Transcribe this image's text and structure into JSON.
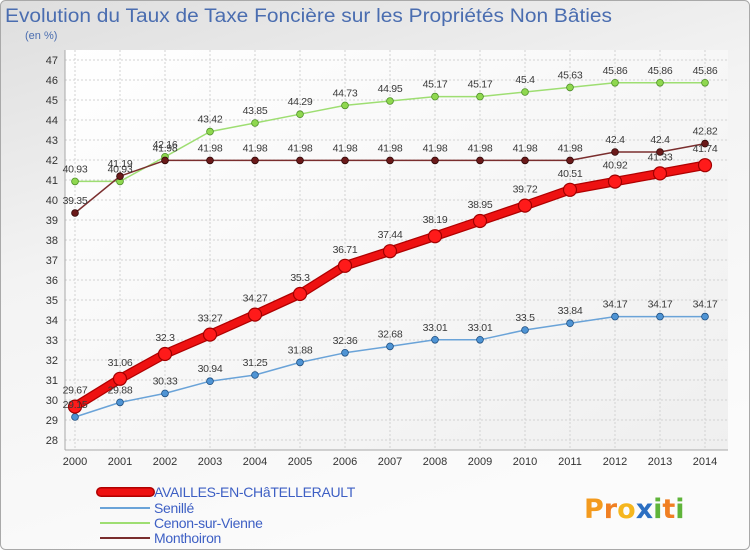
{
  "chart_data": {
    "type": "line",
    "title": "Evolution du Taux de Taxe Foncière sur les Propriétés Non Bâties",
    "subtitle": "(en %)",
    "xlabel": "",
    "ylabel": "",
    "categories": [
      "2000",
      "2001",
      "2002",
      "2003",
      "2004",
      "2005",
      "2006",
      "2007",
      "2008",
      "2009",
      "2010",
      "2011",
      "2012",
      "2013",
      "2014"
    ],
    "ylim": [
      28,
      47
    ],
    "yticks": [
      28,
      29,
      30,
      31,
      32,
      33,
      34,
      35,
      36,
      37,
      38,
      39,
      40,
      41,
      42,
      43,
      44,
      45,
      46,
      47
    ],
    "grid": true,
    "legend_position": "bottom-left",
    "series": [
      {
        "name": "AVAILLES-EN-CHâTELLERAULT",
        "color": "#ee1111",
        "point_color": "#ff1a1a",
        "values": [
          29.67,
          31.06,
          32.3,
          33.27,
          34.27,
          35.3,
          36.71,
          37.44,
          38.19,
          38.95,
          39.72,
          40.51,
          40.92,
          41.33,
          41.74
        ]
      },
      {
        "name": "Senillé",
        "color": "#6aa3d8",
        "point_color": "#4f94d4",
        "values": [
          29.15,
          29.88,
          30.33,
          30.94,
          31.25,
          31.88,
          32.36,
          32.68,
          33.01,
          33.01,
          33.5,
          33.84,
          34.17,
          34.17,
          34.17
        ]
      },
      {
        "name": "Cenon-sur-Vienne",
        "color": "#9ede72",
        "point_color": "#8fd84f",
        "values": [
          40.93,
          40.93,
          42.16,
          43.42,
          43.85,
          44.29,
          44.73,
          44.95,
          45.17,
          45.17,
          45.4,
          45.63,
          45.86,
          45.86,
          45.86
        ]
      },
      {
        "name": "Monthoiron",
        "color": "#7a2e2e",
        "point_color": "#6b1a1a",
        "values": [
          39.35,
          41.19,
          41.98,
          41.98,
          41.98,
          41.98,
          41.98,
          41.98,
          41.98,
          41.98,
          41.98,
          41.98,
          42.4,
          42.4,
          42.82
        ]
      }
    ]
  },
  "logo": "Proxiti"
}
